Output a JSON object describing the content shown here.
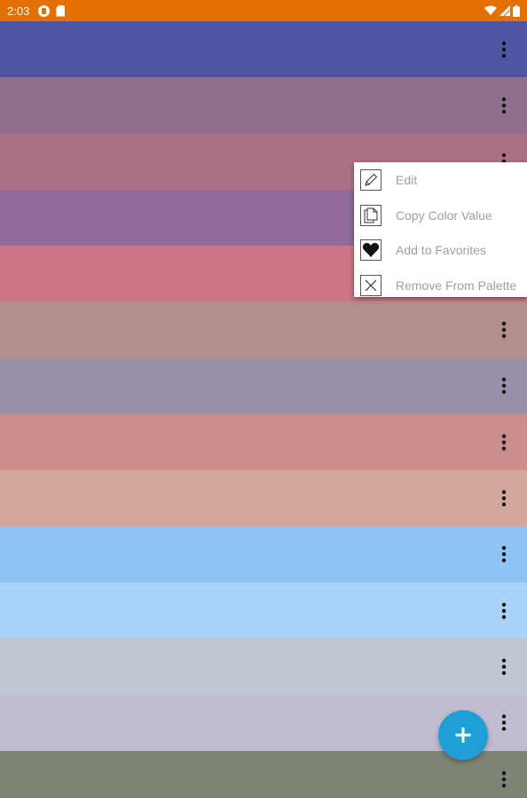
{
  "status_bar": {
    "time": "2:03",
    "background": "#e37000",
    "icons": [
      "app-notification-icon",
      "sd-card-icon",
      "wifi-icon",
      "signal-icon",
      "battery-icon"
    ]
  },
  "palette": {
    "colors": [
      "#4e56a3",
      "#8f6f8e",
      "#ad7187",
      "#906b9c",
      "#cb7586",
      "#b18f8c",
      "#9b90ab",
      "#cb8c8c",
      "#d4a79d",
      "#8ec5f7",
      "#a9d3f8",
      "#c0c6d2",
      "#c1bcd0",
      "#7f8576"
    ],
    "more_icon": "more-vert-icon"
  },
  "menu": {
    "items": [
      {
        "label": "Edit",
        "icon": "pencil-icon"
      },
      {
        "label": "Copy Color Value",
        "icon": "copy-icon"
      },
      {
        "label": "Add to Favorites",
        "icon": "heart-icon"
      },
      {
        "label": "Remove From Palette",
        "icon": "close-icon"
      }
    ]
  },
  "fab": {
    "label": "+",
    "color": "#1e9fd6",
    "icon": "add-icon"
  }
}
